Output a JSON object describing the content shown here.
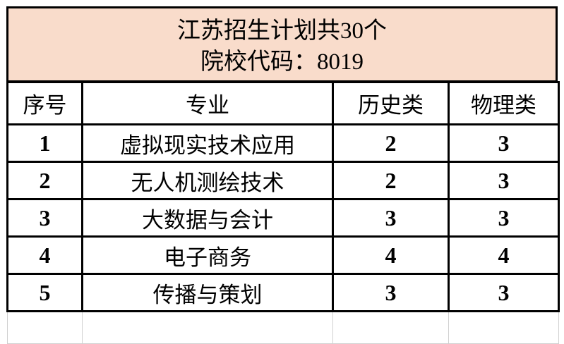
{
  "title": {
    "line1": "江苏招生计划共30个",
    "line2": "院校代码：8019"
  },
  "columns": [
    "序号",
    "专业",
    "历史类",
    "物理类"
  ],
  "rows": [
    [
      "1",
      "虚拟现实技术应用",
      "2",
      "3"
    ],
    [
      "2",
      "无人机测绘技术",
      "2",
      "3"
    ],
    [
      "3",
      "大数据与会计",
      "3",
      "3"
    ],
    [
      "4",
      "电子商务",
      "4",
      "4"
    ],
    [
      "5",
      "传播与策划",
      "3",
      "3"
    ]
  ],
  "colors": {
    "title_background": "#f9dccb"
  }
}
